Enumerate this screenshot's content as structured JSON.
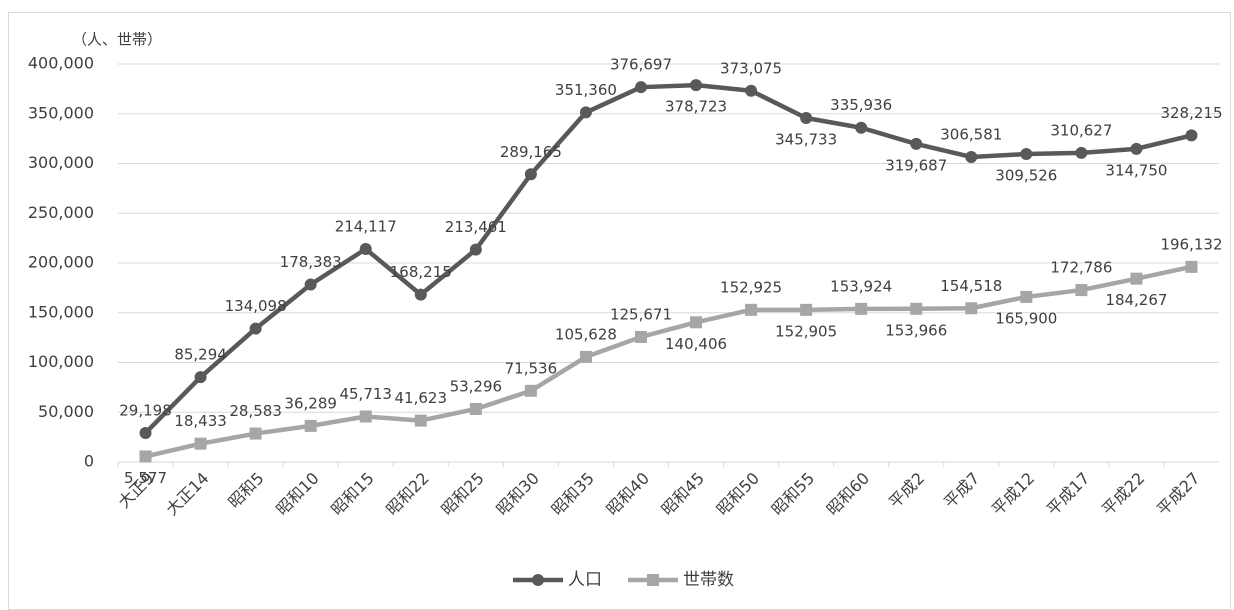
{
  "chart_data": {
    "type": "line",
    "y_axis_label": "（人、世帯）",
    "categories": [
      "大正9",
      "大正14",
      "昭和5",
      "昭和10",
      "昭和15",
      "昭和22",
      "昭和25",
      "昭和30",
      "昭和35",
      "昭和40",
      "昭和45",
      "昭和50",
      "昭和55",
      "昭和60",
      "平成2",
      "平成7",
      "平成12",
      "平成17",
      "平成22",
      "平成27"
    ],
    "series": [
      {
        "name": "人口",
        "color": "#595959",
        "marker": "circle",
        "values": [
          29198,
          85294,
          134098,
          178383,
          214117,
          168215,
          213461,
          289165,
          351360,
          376697,
          378723,
          373075,
          345733,
          335936,
          319687,
          306581,
          309526,
          310627,
          314750,
          328215
        ],
        "value_labels": [
          "29,198",
          "85,294",
          "134,098",
          "178,383",
          "214,117",
          "168,215",
          "213,461",
          "289,165",
          "351,360",
          "376,697",
          "378,723",
          "373,075",
          "345,733",
          "335,936",
          "319,687",
          "306,581",
          "309,526",
          "310,627",
          "314,750",
          "328,215"
        ]
      },
      {
        "name": "世帯数",
        "color": "#a6a6a6",
        "marker": "square",
        "values": [
          5577,
          18433,
          28583,
          36289,
          45713,
          41623,
          53296,
          71536,
          105628,
          125671,
          140406,
          152925,
          152905,
          153924,
          153966,
          154518,
          165900,
          172786,
          184267,
          196132
        ],
        "value_labels": [
          "5,577",
          "18,433",
          "28,583",
          "36,289",
          "45,713",
          "41,623",
          "53,296",
          "71,536",
          "105,628",
          "125,671",
          "140,406",
          "152,925",
          "152,905",
          "153,924",
          "153,966",
          "154,518",
          "165,900",
          "172,786",
          "184,267",
          "196,132"
        ]
      }
    ],
    "ylim": [
      0,
      400000
    ],
    "yticks": [
      0,
      {
        "value": 50000,
        "label": "50,000"
      },
      {
        "value": 100000,
        "label": "100,000"
      },
      {
        "value": 150000,
        "label": "150,000"
      },
      {
        "value": 200000,
        "label": "200,000"
      },
      {
        "value": 250000,
        "label": "250,000"
      },
      {
        "value": 300000,
        "label": "300,000"
      },
      {
        "value": 350000,
        "label": "350,000"
      },
      {
        "value": 400000,
        "label": "400,000"
      }
    ],
    "grid": true,
    "legend": "bottom"
  }
}
